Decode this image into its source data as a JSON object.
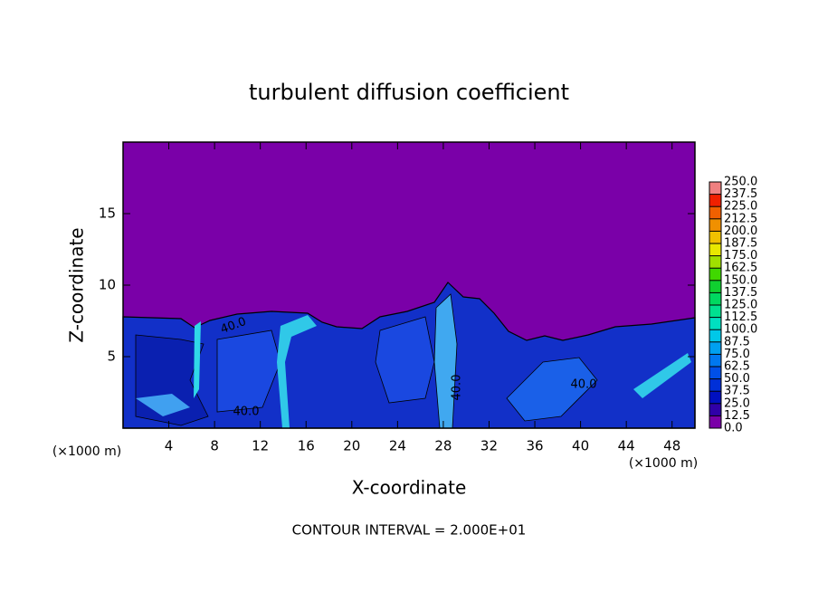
{
  "chart_data": {
    "type": "contour",
    "title": "turbulent diffusion coefficient",
    "x_label": "X-coordinate",
    "y_label": "Z-coordinate",
    "x_unit_label": "(×1000 m)",
    "y_unit_label": "(×1000 m)",
    "footnote": "CONTOUR INTERVAL = 2.000E+01",
    "xlim": [
      0,
      50
    ],
    "ylim": [
      0,
      20
    ],
    "xticks": [
      4,
      8,
      12,
      16,
      20,
      24,
      28,
      32,
      36,
      40,
      44,
      48
    ],
    "yticks": [
      5,
      10,
      15
    ],
    "contour_labels": [
      "40.0",
      "40.0",
      "40.0",
      "40.0"
    ],
    "colorbar": {
      "levels": [
        {
          "value": 0,
          "label": "0.0"
        },
        {
          "value": 12.5,
          "label": "12.5"
        },
        {
          "value": 25,
          "label": "25.0"
        },
        {
          "value": 37.5,
          "label": "37.5"
        },
        {
          "value": 50,
          "label": "50.0"
        },
        {
          "value": 62.5,
          "label": "62.5"
        },
        {
          "value": 75,
          "label": "75.0"
        },
        {
          "value": 87.5,
          "label": "87.5"
        },
        {
          "value": 100,
          "label": "100.0"
        },
        {
          "value": 112.5,
          "label": "112.5"
        },
        {
          "value": 125,
          "label": "125.0"
        },
        {
          "value": 137.5,
          "label": "137.5"
        },
        {
          "value": 150,
          "label": "150.0"
        },
        {
          "value": 162.5,
          "label": "162.5"
        },
        {
          "value": 175,
          "label": "175.0"
        },
        {
          "value": 187.5,
          "label": "187.5"
        },
        {
          "value": 200,
          "label": "200.0"
        },
        {
          "value": 212.5,
          "label": "212.5"
        },
        {
          "value": 225,
          "label": "225.0"
        },
        {
          "value": 237.5,
          "label": "237.5"
        },
        {
          "value": 250,
          "label": "250.0"
        }
      ],
      "colors": [
        "#7a00a8",
        "#3000a8",
        "#0010c0",
        "#0030d8",
        "#0050e8",
        "#0078f0",
        "#00a0f0",
        "#00c8e8",
        "#00e0c0",
        "#00e090",
        "#00d860",
        "#10d030",
        "#40d800",
        "#a0e000",
        "#e8e800",
        "#f0c000",
        "#f09000",
        "#f06000",
        "#f02000",
        "#f08080"
      ]
    }
  }
}
